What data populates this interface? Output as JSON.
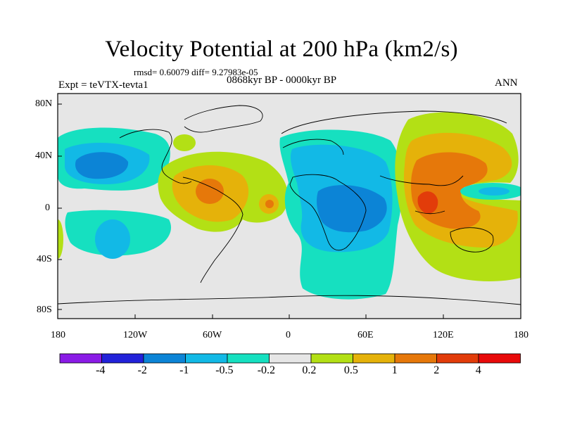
{
  "title": "Velocity Potential at 200 hPa (km2/s)",
  "stats": "rmsd= 0.60079 diff= 9.27983e-05",
  "period": "0868kyr BP - 0000kyr BP",
  "expt": "Expt = teVTX-tevta1",
  "season": "ANN",
  "lat_labels": [
    "80N",
    "40N",
    "0",
    "40S",
    "80S"
  ],
  "lon_labels": [
    "180",
    "120W",
    "60W",
    "0",
    "60E",
    "120E",
    "180"
  ],
  "colorbar": {
    "labels": [
      "-4",
      "-2",
      "-1",
      "-0.5",
      "-0.2",
      "0.2",
      "0.5",
      "1",
      "2",
      "4"
    ],
    "colors": [
      "#8a1be6",
      "#2222d9",
      "#0c84d6",
      "#12b9e6",
      "#16e0c0",
      "#e6e6e6",
      "#b3e015",
      "#e5b20a",
      "#e6780a",
      "#e23c0a",
      "#e80a0a"
    ]
  },
  "palette": {
    "neutral": "#e6e6e6",
    "teal": "#16e0c0",
    "cyan": "#12b9e6",
    "blue": "#0c84d6",
    "lime": "#b3e015",
    "gold": "#e5b20a",
    "orange": "#e6780a",
    "redorange": "#e23c0a"
  }
}
